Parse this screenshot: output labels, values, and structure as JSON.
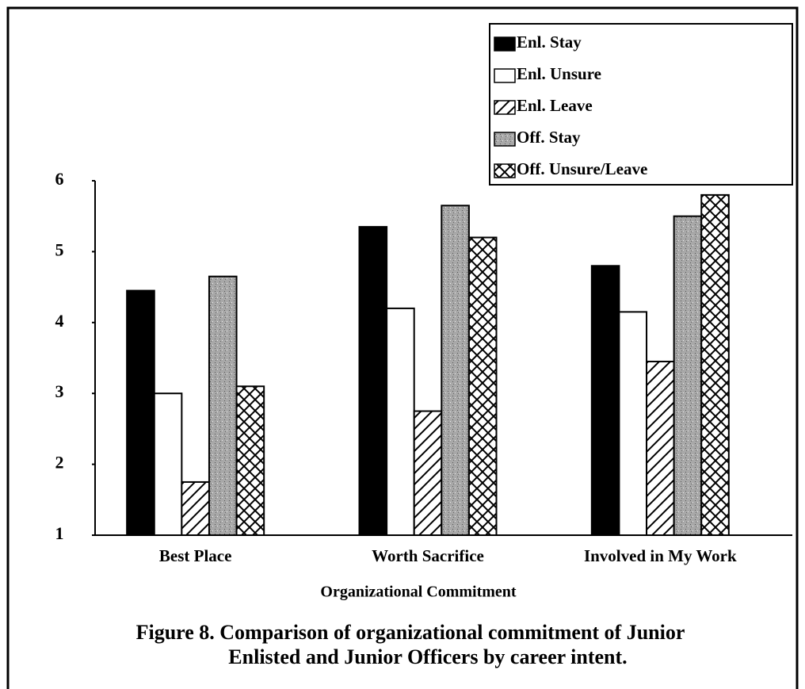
{
  "chart_data": {
    "type": "bar",
    "title": [
      "Figure 8.  Comparison of organizational commitment of Junior",
      "Enlisted and Junior Officers by career intent."
    ],
    "x_label": "Organizational Commitment",
    "categories": [
      "Best Place",
      "Worth Sacrifice",
      "Involved in My Work"
    ],
    "series": [
      {
        "name": "Enl. Stay",
        "color": "#000000",
        "pattern": "solid",
        "values": [
          4.45,
          5.35,
          4.8
        ]
      },
      {
        "name": "Enl. Unsure",
        "color": "#ffffff",
        "pattern": "solid",
        "values": [
          3.0,
          4.2,
          4.15
        ]
      },
      {
        "name": "Enl. Leave",
        "color": "#ffffff",
        "pattern": "diagonal",
        "values": [
          1.75,
          2.75,
          3.45
        ]
      },
      {
        "name": "Off. Stay",
        "color": "#a8a8a8",
        "pattern": "stipple",
        "values": [
          4.65,
          5.65,
          5.5
        ]
      },
      {
        "name": "Off. Unsure/Leave",
        "color": "#ffffff",
        "pattern": "crosshatch",
        "values": [
          3.1,
          5.2,
          5.8
        ]
      }
    ],
    "ylim": [
      1,
      6
    ],
    "yticks": [
      1,
      2,
      3,
      4,
      5,
      6
    ],
    "grid": false,
    "legend": "top-right"
  }
}
